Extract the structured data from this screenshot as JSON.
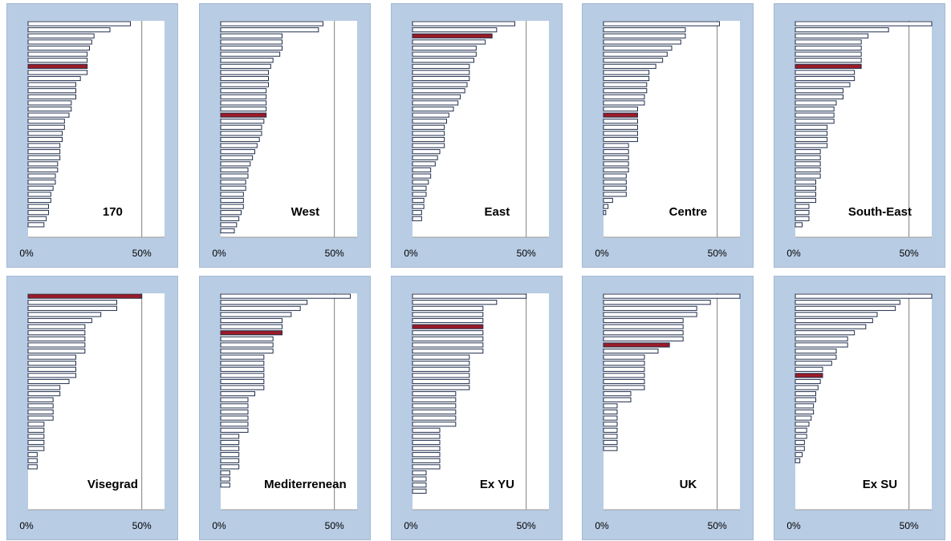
{
  "style": {
    "bar_fill": "#ffffff",
    "highlight_fill": "#9b1b26",
    "plot_bg": "#ffffff",
    "panel_bg": "#b8cce4"
  },
  "chart_data": [
    {
      "type": "bar",
      "orientation": "horizontal",
      "title": "170",
      "xlim": [
        0,
        60
      ],
      "xticks": [
        "0%",
        "50%"
      ],
      "highlight_index": 7,
      "values": [
        45,
        36,
        29,
        28,
        27,
        26,
        26,
        26,
        26,
        23,
        21,
        21,
        21,
        19,
        19,
        18,
        16,
        16,
        15,
        15,
        14,
        14,
        14,
        13,
        13,
        12,
        12,
        11,
        10,
        10,
        9,
        9,
        8,
        7
      ]
    },
    {
      "type": "bar",
      "orientation": "horizontal",
      "title": "West",
      "xlim": [
        0,
        60
      ],
      "xticks": [
        "0%",
        "50%"
      ],
      "highlight_index": 15,
      "values": [
        45,
        43,
        27,
        27,
        27,
        26,
        23,
        22,
        21,
        21,
        21,
        20,
        20,
        20,
        20,
        20,
        19,
        18,
        18,
        17,
        16,
        15,
        14,
        13,
        12,
        12,
        11,
        11,
        10,
        10,
        10,
        9,
        8,
        7,
        6
      ]
    },
    {
      "type": "bar",
      "orientation": "horizontal",
      "title": "East",
      "xlim": [
        0,
        60
      ],
      "xticks": [
        "0%",
        "50%"
      ],
      "highlight_index": 2,
      "values": [
        45,
        37,
        35,
        32,
        28,
        28,
        27,
        25,
        25,
        25,
        24,
        23,
        21,
        20,
        18,
        16,
        15,
        14,
        14,
        14,
        14,
        12,
        11,
        10,
        8,
        8,
        7,
        6,
        6,
        5,
        5,
        4,
        4
      ]
    },
    {
      "type": "bar",
      "orientation": "horizontal",
      "title": "Centre",
      "xlim": [
        0,
        60
      ],
      "xticks": [
        "0%",
        "50%"
      ],
      "highlight_index": 15,
      "values": [
        51,
        36,
        36,
        34,
        30,
        28,
        26,
        23,
        20,
        20,
        19,
        19,
        18,
        18,
        15,
        15,
        15,
        15,
        15,
        15,
        11,
        11,
        11,
        11,
        11,
        10,
        10,
        10,
        10,
        4,
        2,
        1
      ]
    },
    {
      "type": "bar",
      "orientation": "horizontal",
      "title": "South-East",
      "xlim": [
        0,
        60
      ],
      "xticks": [
        "0%",
        "50%"
      ],
      "highlight_index": 7,
      "values": [
        60,
        41,
        32,
        29,
        29,
        29,
        29,
        29,
        26,
        26,
        24,
        21,
        21,
        18,
        17,
        17,
        17,
        14,
        14,
        14,
        14,
        11,
        11,
        11,
        11,
        11,
        9,
        9,
        9,
        9,
        6,
        6,
        6,
        3
      ]
    },
    {
      "type": "bar",
      "orientation": "horizontal",
      "title": "Visegrad",
      "xlim": [
        0,
        60
      ],
      "xticks": [
        "0%",
        "50%"
      ],
      "highlight_index": 0,
      "values": [
        50,
        39,
        39,
        32,
        28,
        25,
        25,
        25,
        25,
        25,
        21,
        21,
        21,
        21,
        18,
        14,
        14,
        11,
        11,
        11,
        11,
        7,
        7,
        7,
        7,
        7,
        4,
        4,
        4
      ]
    },
    {
      "type": "bar",
      "orientation": "horizontal",
      "title": "Mediterrenean",
      "xlim": [
        0,
        60
      ],
      "xticks": [
        "0%",
        "50%"
      ],
      "highlight_index": 6,
      "values": [
        57,
        38,
        35,
        31,
        27,
        27,
        27,
        23,
        23,
        23,
        19,
        19,
        19,
        19,
        19,
        19,
        15,
        12,
        12,
        12,
        12,
        12,
        12,
        8,
        8,
        8,
        8,
        8,
        8,
        4,
        4,
        4
      ]
    },
    {
      "type": "bar",
      "orientation": "horizontal",
      "title": "Ex YU",
      "xlim": [
        0,
        60
      ],
      "xticks": [
        "0%",
        "50%"
      ],
      "highlight_index": 5,
      "values": [
        50,
        37,
        31,
        31,
        31,
        31,
        31,
        31,
        31,
        31,
        25,
        25,
        25,
        25,
        25,
        25,
        19,
        19,
        19,
        19,
        19,
        19,
        12,
        12,
        12,
        12,
        12,
        12,
        12,
        6,
        6,
        6,
        6
      ]
    },
    {
      "type": "bar",
      "orientation": "horizontal",
      "title": "UK",
      "xlim": [
        0,
        60
      ],
      "xticks": [
        "0%",
        "50%"
      ],
      "highlight_index": 8,
      "values": [
        60,
        47,
        41,
        41,
        35,
        35,
        35,
        35,
        29,
        24,
        18,
        18,
        18,
        18,
        18,
        18,
        12,
        12,
        6,
        6,
        6,
        6,
        6,
        6,
        6,
        6
      ]
    },
    {
      "type": "bar",
      "orientation": "horizontal",
      "title": "Ex SU",
      "xlim": [
        0,
        60
      ],
      "xticks": [
        "0%",
        "50%"
      ],
      "highlight_index": 13,
      "values": [
        60,
        46,
        44,
        36,
        34,
        31,
        26,
        23,
        23,
        18,
        18,
        16,
        12,
        12,
        11,
        10,
        9,
        9,
        8,
        8,
        7,
        6,
        5,
        5,
        4,
        4,
        3,
        2
      ]
    }
  ]
}
